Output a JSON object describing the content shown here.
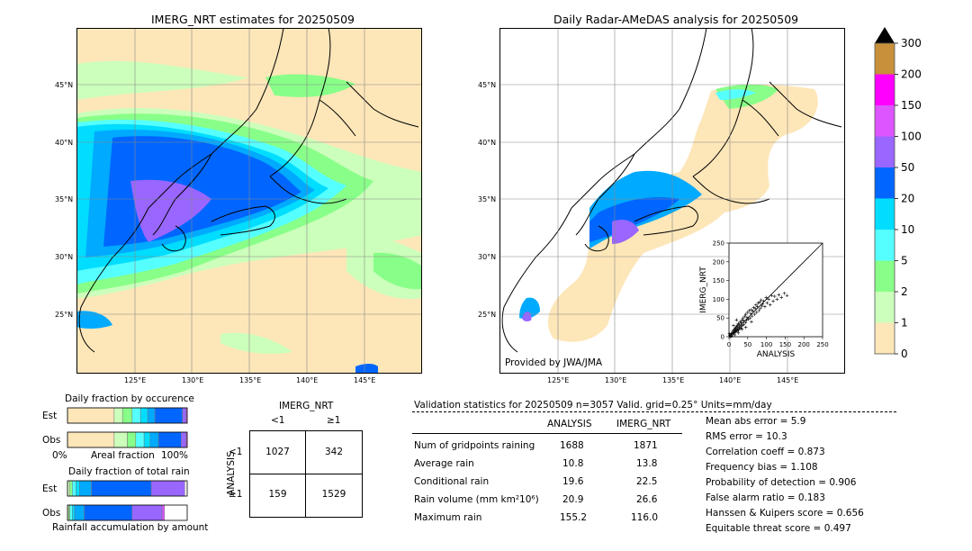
{
  "left_map": {
    "title": "IMERG_NRT estimates for 20250509",
    "lat_labels": [
      "45°N",
      "40°N",
      "35°N",
      "30°N",
      "25°N"
    ],
    "lon_labels": [
      "125°E",
      "130°E",
      "135°E",
      "140°E",
      "145°E"
    ]
  },
  "right_map": {
    "title": "Daily Radar-AMeDAS analysis for 20250509",
    "lat_labels": [
      "45°N",
      "40°N",
      "35°N",
      "30°N",
      "25°N"
    ],
    "lon_labels": [
      "125°E",
      "130°E",
      "135°E",
      "140°E",
      "145°E"
    ],
    "credit": "Provided by JWA/JMA"
  },
  "colorbar": {
    "labels": [
      "300",
      "200",
      "150",
      "100",
      "50",
      "20",
      "10",
      "5",
      "2",
      "1",
      "0"
    ],
    "colors": [
      "#c8903a",
      "#ff00ff",
      "#dd55ff",
      "#9966ff",
      "#0066ff",
      "#00aaff",
      "#00ddff",
      "#55ffff",
      "#88ff88",
      "#ccffbb",
      "#fde6b8"
    ]
  },
  "scatter": {
    "xlabel": "ANALYSIS",
    "ylabel": "IMERG_NRT",
    "ticks": [
      "0",
      "50",
      "100",
      "150",
      "200",
      "250"
    ]
  },
  "occurrence": {
    "title": "Daily fraction by occurence",
    "row1": "Est",
    "row2": "Obs",
    "axis_left": "0%",
    "axis_mid": "Areal fraction",
    "axis_right": "100%"
  },
  "total_rain": {
    "title": "Daily fraction of total rain",
    "row1": "Est",
    "row2": "Obs",
    "footer": "Rainfall accumulation by amount"
  },
  "contingency": {
    "top_label": "IMERG_NRT",
    "col1": "<1",
    "col2": "≥1",
    "side_label": "ANALYSIS",
    "row1": "<1",
    "row2": "≥1",
    "c11": "1027",
    "c12": "342",
    "c21": "159",
    "c22": "1529"
  },
  "validation": {
    "header": "Validation statistics for 20250509  n=3057 Valid. grid=0.25° Units=mm/day",
    "col_analysis": "ANALYSIS",
    "col_imerg": "IMERG_NRT",
    "rows": [
      {
        "label": "Num of gridpoints raining",
        "analysis": "1688",
        "imerg": "1871"
      },
      {
        "label": "Average rain",
        "analysis": "10.8",
        "imerg": "13.8"
      },
      {
        "label": "Conditional rain",
        "analysis": "19.6",
        "imerg": "22.5"
      },
      {
        "label": "Rain volume (mm km²10⁶)",
        "analysis": "20.9",
        "imerg": "26.6"
      },
      {
        "label": "Maximum rain",
        "analysis": "155.2",
        "imerg": "116.0"
      }
    ],
    "scores": [
      "Mean abs error =    5.9",
      "RMS error =   10.3",
      "Correlation coeff =  0.873",
      "Frequency bias =  1.108",
      "Probability of detection =  0.906",
      "False alarm ratio =  0.183",
      "Hanssen & Kuipers score =  0.656",
      "Equitable threat score =  0.497"
    ]
  },
  "chart_data": [
    {
      "type": "bar",
      "title": "Daily fraction by occurence",
      "categories": [
        "Est",
        "Obs"
      ],
      "series_colors": [
        "#fde6b8",
        "#ccffbb",
        "#88ff88",
        "#55ffff",
        "#00ddff",
        "#00aaff",
        "#0066ff",
        "#9966ff",
        "#dd55ff"
      ],
      "series": [
        {
          "values": [
            0.39,
            0.39
          ]
        },
        {
          "values": [
            0.07,
            0.11
          ]
        },
        {
          "values": [
            0.08,
            0.07
          ]
        },
        {
          "values": [
            0.07,
            0.07
          ]
        },
        {
          "values": [
            0.06,
            0.05
          ]
        },
        {
          "values": [
            0.06,
            0.07
          ]
        },
        {
          "values": [
            0.23,
            0.19
          ]
        },
        {
          "values": [
            0.03,
            0.04
          ]
        },
        {
          "values": [
            0.01,
            0.01
          ]
        }
      ]
    },
    {
      "type": "bar",
      "title": "Daily fraction of total rain",
      "categories": [
        "Est",
        "Obs"
      ],
      "series_colors": [
        "#ccffbb",
        "#88ff88",
        "#55ffff",
        "#00ddff",
        "#00aaff",
        "#0066ff",
        "#9966ff",
        "#dd55ff"
      ],
      "series": [
        {
          "values": [
            0.02,
            0.01
          ]
        },
        {
          "values": [
            0.02,
            0.01
          ]
        },
        {
          "values": [
            0.03,
            0.02
          ]
        },
        {
          "values": [
            0.03,
            0.02
          ]
        },
        {
          "values": [
            0.1,
            0.08
          ]
        },
        {
          "values": [
            0.5,
            0.4
          ]
        },
        {
          "values": [
            0.28,
            0.25
          ]
        },
        {
          "values": [
            0.0,
            0.02
          ]
        }
      ]
    },
    {
      "type": "scatter",
      "xlabel": "ANALYSIS",
      "ylabel": "IMERG_NRT",
      "xlim": [
        0,
        250
      ],
      "ylim": [
        0,
        250
      ],
      "points": [
        [
          2,
          3
        ],
        [
          4,
          6
        ],
        [
          5,
          2
        ],
        [
          6,
          9
        ],
        [
          8,
          5
        ],
        [
          9,
          12
        ],
        [
          10,
          8
        ],
        [
          11,
          15
        ],
        [
          12,
          10
        ],
        [
          13,
          18
        ],
        [
          14,
          11
        ],
        [
          15,
          20
        ],
        [
          16,
          14
        ],
        [
          17,
          22
        ],
        [
          18,
          13
        ],
        [
          19,
          25
        ],
        [
          20,
          17
        ],
        [
          21,
          28
        ],
        [
          22,
          15
        ],
        [
          23,
          30
        ],
        [
          24,
          20
        ],
        [
          25,
          35
        ],
        [
          26,
          18
        ],
        [
          27,
          32
        ],
        [
          28,
          24
        ],
        [
          30,
          40
        ],
        [
          31,
          22
        ],
        [
          32,
          38
        ],
        [
          33,
          27
        ],
        [
          35,
          45
        ],
        [
          36,
          30
        ],
        [
          38,
          50
        ],
        [
          39,
          33
        ],
        [
          40,
          42
        ],
        [
          42,
          55
        ],
        [
          44,
          38
        ],
        [
          45,
          60
        ],
        [
          47,
          44
        ],
        [
          48,
          52
        ],
        [
          50,
          65
        ],
        [
          52,
          47
        ],
        [
          54,
          70
        ],
        [
          56,
          50
        ],
        [
          58,
          62
        ],
        [
          60,
          72
        ],
        [
          62,
          55
        ],
        [
          64,
          68
        ],
        [
          66,
          78
        ],
        [
          68,
          60
        ],
        [
          70,
          75
        ],
        [
          72,
          85
        ],
        [
          74,
          65
        ],
        [
          76,
          80
        ],
        [
          78,
          90
        ],
        [
          80,
          70
        ],
        [
          82,
          92
        ],
        [
          84,
          76
        ],
        [
          86,
          98
        ],
        [
          88,
          82
        ],
        [
          90,
          88
        ],
        [
          93,
          95
        ],
        [
          96,
          80
        ],
        [
          99,
          105
        ],
        [
          102,
          90
        ],
        [
          106,
          100
        ],
        [
          110,
          85
        ],
        [
          114,
          110
        ],
        [
          118,
          95
        ],
        [
          122,
          108
        ],
        [
          128,
          100
        ],
        [
          133,
          112
        ],
        [
          140,
          105
        ],
        [
          148,
          116
        ],
        [
          155,
          110
        ],
        [
          3,
          0
        ],
        [
          7,
          1
        ],
        [
          1,
          8
        ],
        [
          15,
          5
        ],
        [
          25,
          10
        ],
        [
          35,
          20
        ],
        [
          12,
          30
        ],
        [
          45,
          25
        ],
        [
          60,
          40
        ],
        [
          20,
          45
        ]
      ]
    }
  ]
}
